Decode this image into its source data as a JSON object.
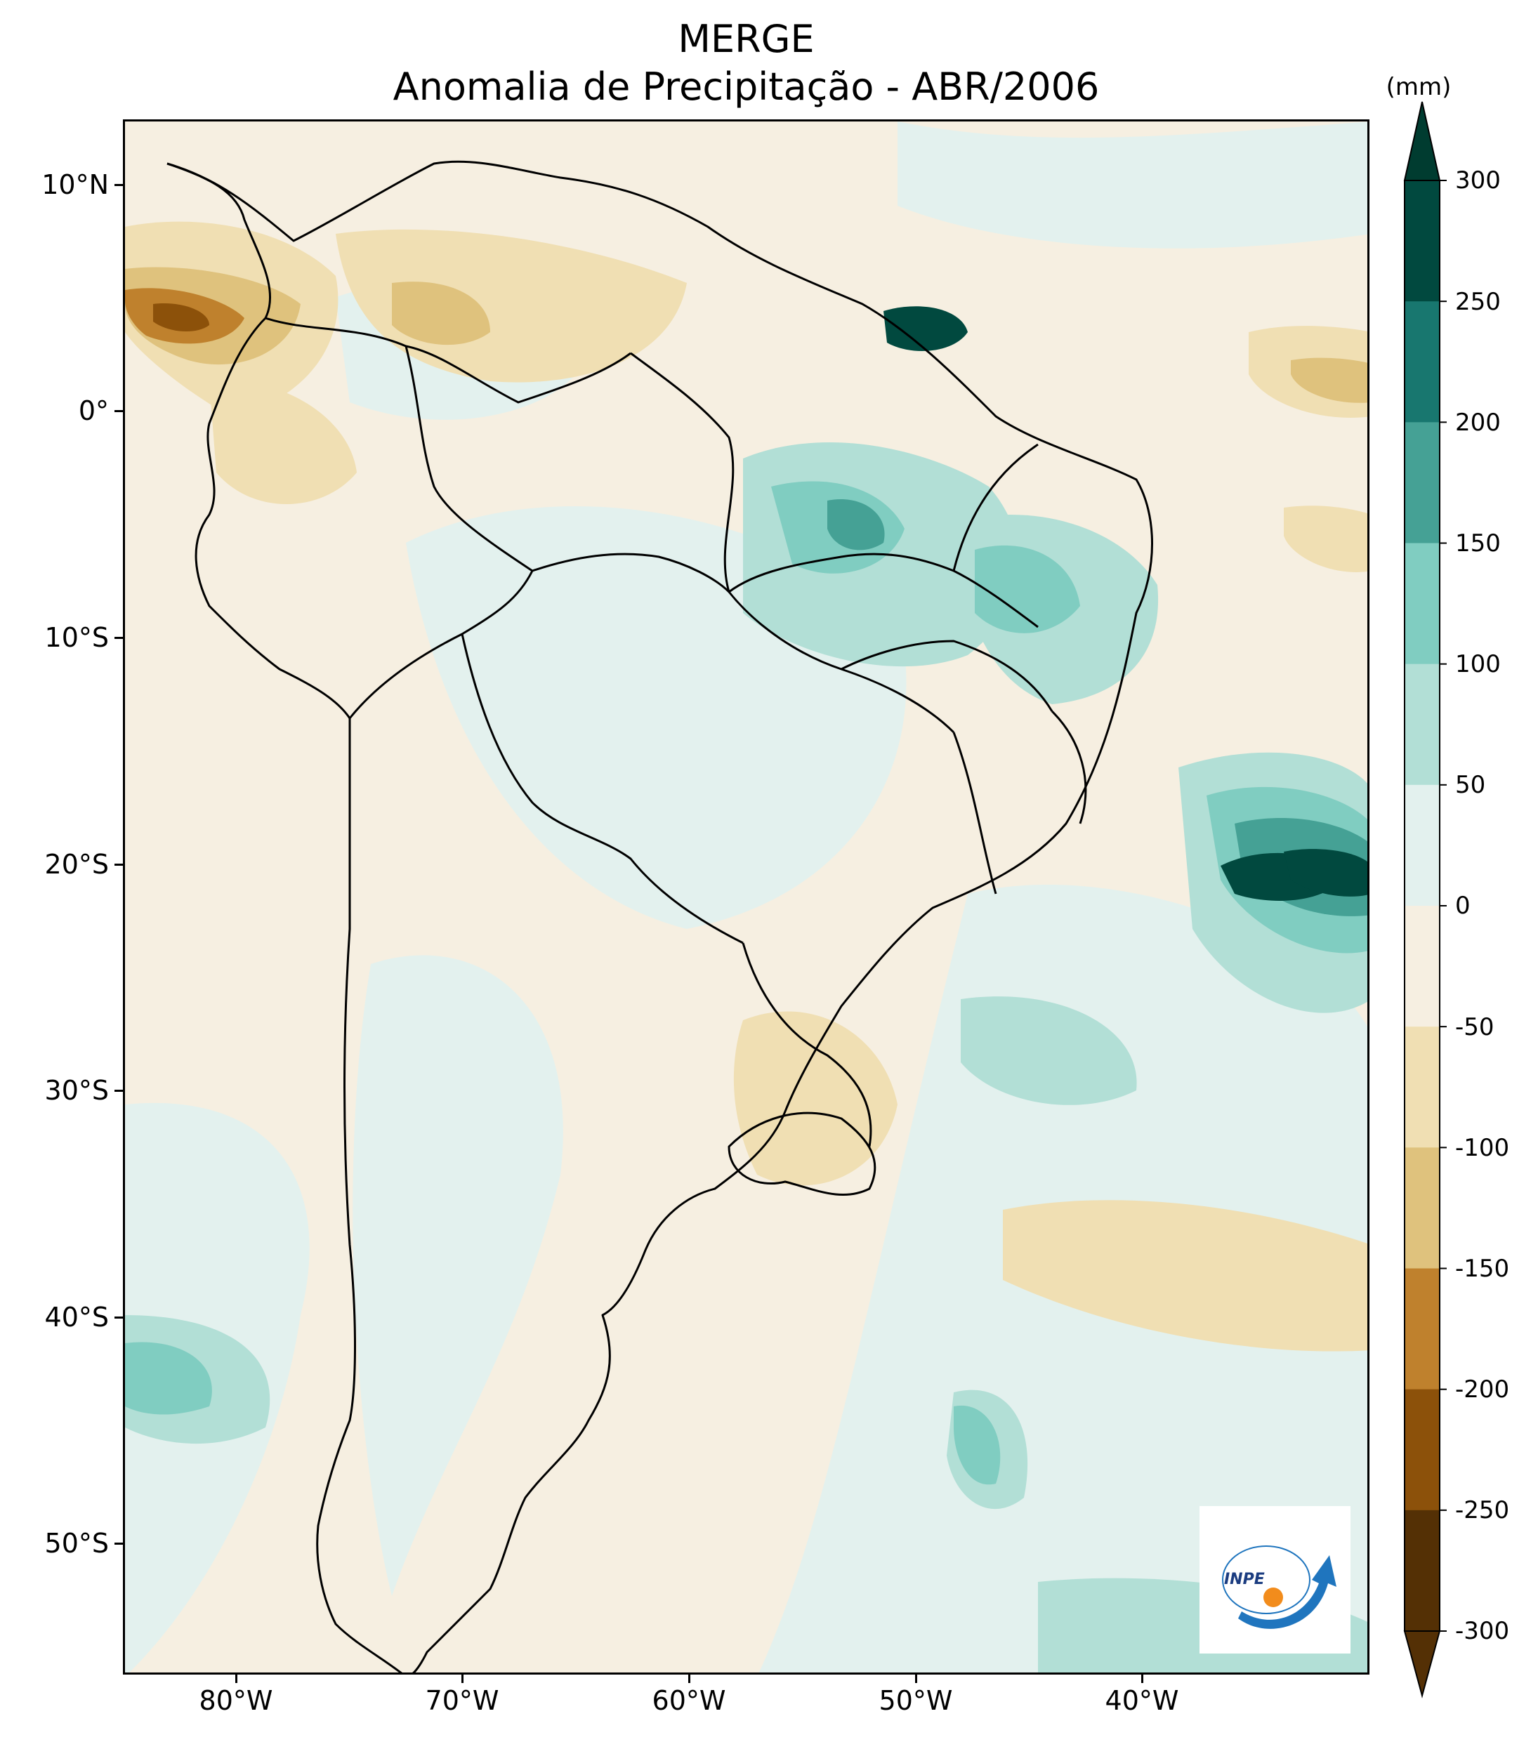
{
  "title": {
    "line1": "MERGE",
    "line2": "Anomalia de Precipitação - ABR/2006"
  },
  "map": {
    "lat_labels": [
      "10°N",
      "0°",
      "10°S",
      "20°S",
      "30°S",
      "40°S",
      "50°S"
    ],
    "lon_labels": [
      "80°W",
      "70°W",
      "60°W",
      "50°W",
      "40°W"
    ],
    "extent": {
      "lon_min": -85,
      "lon_max": -30,
      "lat_min": -56,
      "lat_max": 12.5
    }
  },
  "colorbar": {
    "unit": "(mm)",
    "ticks": [
      "300",
      "250",
      "200",
      "150",
      "100",
      "50",
      "0",
      "-50",
      "-100",
      "-150",
      "-200",
      "-250",
      "-300"
    ],
    "levels": [
      -300,
      -250,
      -200,
      -150,
      -100,
      -50,
      0,
      50,
      100,
      150,
      200,
      250,
      300
    ],
    "colors": [
      "#543005",
      "#8c510a",
      "#bf812d",
      "#dfc27d",
      "#f0dfb3",
      "#f6efe1",
      "#e3f1ee",
      "#b2dfd6",
      "#80cdc1",
      "#45a195",
      "#18776f",
      "#01493f"
    ],
    "under_color": "#543005",
    "over_color": "#003c30"
  },
  "logo": {
    "text": "INPE",
    "arc_color": "#1f75be",
    "dot_color": "#f28c1c"
  }
}
